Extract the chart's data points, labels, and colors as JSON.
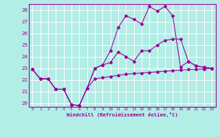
{
  "xlabel": "Windchill (Refroidissement éolien,°C)",
  "bg_color": "#b2ede6",
  "grid_color": "#ffffff",
  "line_color": "#990099",
  "xlim": [
    -0.5,
    23.5
  ],
  "ylim": [
    19.7,
    28.5
  ],
  "yticks": [
    20,
    21,
    22,
    23,
    24,
    25,
    26,
    27,
    28
  ],
  "xticks": [
    0,
    1,
    2,
    3,
    4,
    5,
    6,
    7,
    8,
    9,
    10,
    11,
    12,
    13,
    14,
    15,
    16,
    17,
    18,
    19,
    20,
    21,
    22,
    23
  ],
  "line1_x": [
    0,
    1,
    2,
    3,
    4,
    5,
    6,
    7,
    8,
    9,
    10,
    11,
    12,
    13,
    14,
    15,
    16,
    17,
    18,
    19,
    20,
    21,
    22,
    23
  ],
  "line1_y": [
    22.9,
    22.1,
    22.1,
    21.2,
    21.2,
    19.9,
    19.8,
    21.3,
    22.1,
    22.2,
    22.3,
    22.4,
    22.5,
    22.55,
    22.6,
    22.65,
    22.7,
    22.75,
    22.8,
    22.85,
    22.9,
    22.9,
    22.95,
    23.0
  ],
  "line2_x": [
    0,
    1,
    2,
    3,
    4,
    5,
    6,
    7,
    8,
    9,
    10,
    11,
    12,
    13,
    14,
    15,
    16,
    17,
    18,
    19,
    20,
    21,
    22,
    23
  ],
  "line2_y": [
    22.9,
    22.1,
    22.1,
    21.2,
    21.2,
    19.9,
    19.8,
    21.3,
    23.0,
    23.3,
    23.5,
    24.4,
    24.0,
    23.6,
    24.5,
    24.5,
    25.0,
    25.4,
    25.5,
    25.5,
    23.6,
    23.2,
    23.1,
    23.0
  ],
  "line3_x": [
    0,
    1,
    2,
    3,
    4,
    5,
    6,
    7,
    8,
    9,
    10,
    11,
    12,
    13,
    14,
    15,
    16,
    17,
    18,
    19,
    20,
    21,
    22,
    23
  ],
  "line3_y": [
    22.9,
    22.1,
    22.1,
    21.2,
    21.2,
    19.9,
    19.8,
    21.3,
    23.0,
    23.3,
    24.5,
    26.5,
    27.5,
    27.2,
    26.8,
    28.3,
    27.9,
    28.3,
    27.5,
    23.1,
    23.6,
    23.2,
    23.1,
    23.0
  ]
}
